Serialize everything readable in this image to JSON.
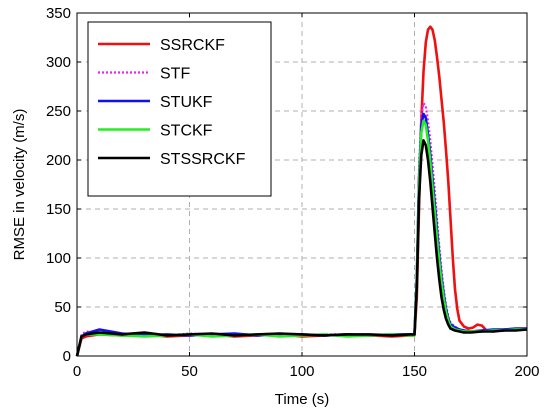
{
  "chart_data": {
    "type": "line",
    "xlabel": "Time (s)",
    "ylabel": "RMSE in velocity (m/s)",
    "xlim": [
      0,
      200
    ],
    "ylim": [
      0,
      350
    ],
    "xticks": [
      0,
      50,
      100,
      150,
      200
    ],
    "yticks": [
      0,
      50,
      100,
      150,
      200,
      250,
      300,
      350
    ],
    "grid": true,
    "legend_position": "top-left",
    "series": [
      {
        "name": "SSRCKF",
        "color": "#ee1111",
        "style": "solid",
        "x": [
          0,
          2,
          4,
          10,
          20,
          30,
          40,
          50,
          60,
          70,
          80,
          90,
          100,
          110,
          120,
          130,
          140,
          148,
          150,
          151,
          152,
          153,
          154,
          155,
          156,
          157,
          158,
          159,
          160,
          161,
          162,
          163,
          164,
          165,
          166,
          167,
          168,
          169,
          170,
          172,
          174,
          176,
          178,
          180,
          182,
          185,
          190,
          195,
          200
        ],
        "values": [
          0,
          18,
          20,
          22,
          21,
          22,
          20,
          21,
          22,
          20,
          21,
          22,
          20,
          21,
          22,
          21,
          20,
          21,
          21,
          60,
          150,
          240,
          290,
          320,
          333,
          336,
          333,
          322,
          305,
          285,
          262,
          238,
          210,
          178,
          140,
          100,
          68,
          48,
          36,
          30,
          28,
          29,
          32,
          31,
          26,
          25,
          27,
          27,
          28
        ]
      },
      {
        "name": "STF",
        "color": "#ee22ee",
        "style": "dotted",
        "x": [
          0,
          2,
          4,
          10,
          20,
          30,
          40,
          50,
          60,
          70,
          80,
          90,
          100,
          110,
          120,
          130,
          140,
          148,
          150,
          151,
          152,
          153,
          154,
          155,
          156,
          157,
          158,
          159,
          160,
          161,
          162,
          163,
          164,
          165,
          166,
          168,
          170,
          172,
          175,
          180,
          185,
          190,
          195,
          200
        ],
        "values": [
          0,
          22,
          25,
          24,
          22,
          22,
          21,
          23,
          22,
          21,
          22,
          23,
          21,
          22,
          22,
          22,
          21,
          22,
          22,
          80,
          190,
          245,
          258,
          255,
          240,
          220,
          195,
          168,
          140,
          112,
          88,
          68,
          52,
          40,
          34,
          30,
          27,
          26,
          25,
          26,
          26,
          27,
          27,
          28
        ]
      },
      {
        "name": "STUKF",
        "color": "#1111ee",
        "style": "solid",
        "x": [
          0,
          2,
          4,
          10,
          20,
          30,
          40,
          50,
          60,
          70,
          80,
          90,
          100,
          110,
          120,
          130,
          140,
          148,
          150,
          151,
          152,
          153,
          154,
          155,
          156,
          157,
          158,
          159,
          160,
          161,
          162,
          163,
          164,
          165,
          166,
          168,
          170,
          172,
          175,
          180,
          185,
          190,
          195,
          200
        ],
        "values": [
          0,
          20,
          23,
          27,
          23,
          21,
          22,
          21,
          22,
          23,
          21,
          22,
          22,
          21,
          22,
          21,
          22,
          22,
          22,
          80,
          180,
          235,
          247,
          243,
          226,
          205,
          180,
          155,
          128,
          102,
          80,
          62,
          48,
          38,
          32,
          29,
          27,
          26,
          25,
          26,
          27,
          27,
          28,
          28
        ]
      },
      {
        "name": "STCKF",
        "color": "#22ee22",
        "style": "solid",
        "x": [
          0,
          2,
          4,
          10,
          20,
          30,
          40,
          50,
          60,
          70,
          80,
          90,
          100,
          110,
          120,
          130,
          140,
          148,
          150,
          151,
          152,
          153,
          154,
          155,
          156,
          157,
          158,
          159,
          160,
          161,
          162,
          163,
          164,
          165,
          166,
          168,
          170,
          172,
          175,
          180,
          185,
          190,
          195,
          200
        ],
        "values": [
          0,
          20,
          22,
          22,
          21,
          20,
          21,
          22,
          20,
          21,
          22,
          20,
          21,
          22,
          20,
          21,
          22,
          21,
          21,
          75,
          170,
          228,
          240,
          236,
          220,
          198,
          172,
          146,
          120,
          96,
          75,
          58,
          45,
          36,
          30,
          27,
          26,
          25,
          25,
          25,
          26,
          26,
          27,
          27
        ]
      },
      {
        "name": "STSSRCKF",
        "color": "#000000",
        "style": "solid",
        "x": [
          0,
          2,
          4,
          10,
          20,
          30,
          40,
          50,
          60,
          70,
          80,
          90,
          100,
          110,
          120,
          130,
          140,
          148,
          150,
          151,
          152,
          153,
          154,
          155,
          156,
          157,
          158,
          159,
          160,
          161,
          162,
          163,
          164,
          165,
          166,
          168,
          170,
          172,
          175,
          180,
          185,
          190,
          195,
          200
        ],
        "values": [
          0,
          20,
          22,
          24,
          22,
          24,
          21,
          22,
          23,
          21,
          22,
          23,
          22,
          21,
          22,
          22,
          21,
          22,
          22,
          70,
          160,
          205,
          220,
          215,
          200,
          178,
          152,
          125,
          100,
          78,
          60,
          47,
          38,
          32,
          28,
          26,
          25,
          24,
          24,
          25,
          25,
          26,
          26,
          27
        ]
      }
    ]
  }
}
